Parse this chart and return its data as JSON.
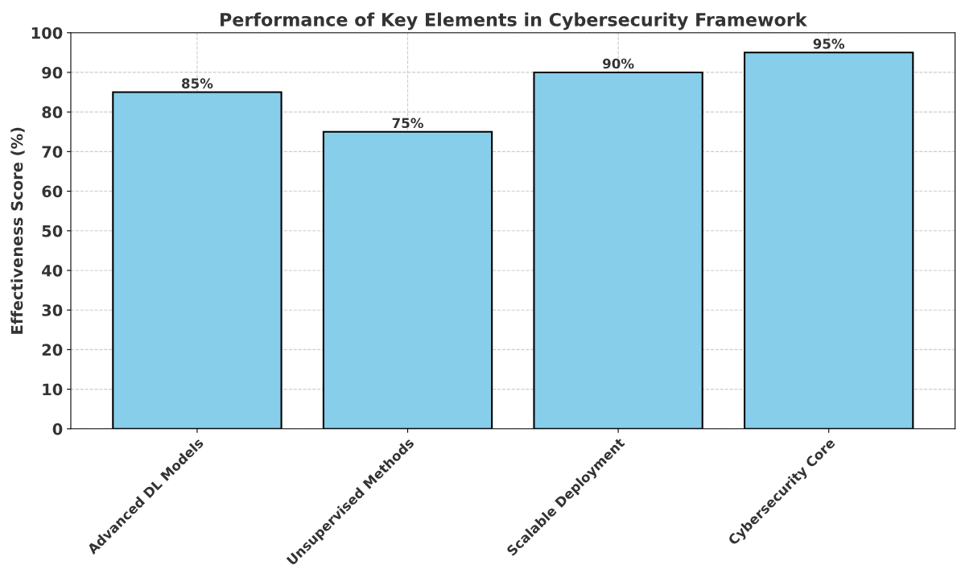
{
  "chart_data": {
    "type": "bar",
    "title": "Performance of Key Elements in Cybersecurity Framework",
    "ylabel": "Effectiveness Score (%)",
    "categories": [
      "Advanced DL Models",
      "Unsupervised Methods",
      "Scalable Deployment",
      "Cybersecurity Core"
    ],
    "values": [
      85,
      75,
      90,
      95
    ],
    "color": "#87ceeb",
    "value_labels": [
      "85%",
      "75%",
      "90%",
      "95%"
    ],
    "ylim": [
      0,
      100
    ],
    "yticks": [
      0,
      10,
      20,
      30,
      40,
      50,
      60,
      70,
      80,
      90,
      100
    ],
    "grid": true
  }
}
